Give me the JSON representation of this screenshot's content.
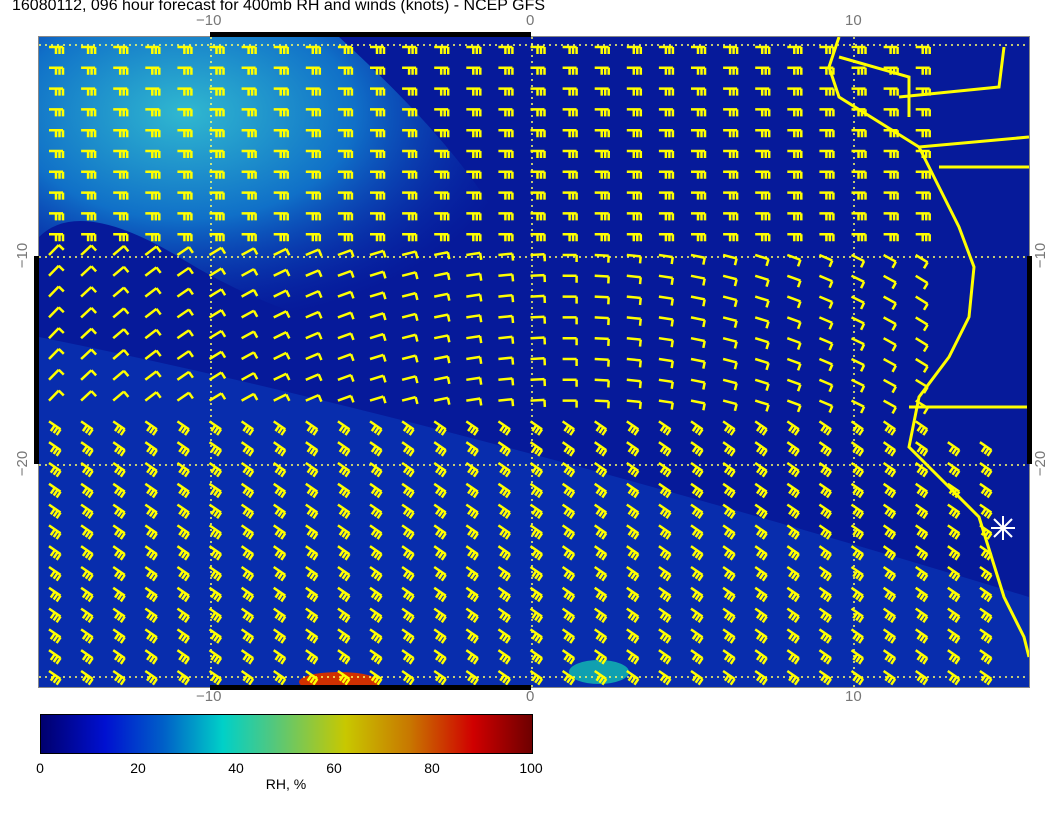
{
  "title": "16080112, 096 hour forecast for 400mb RH and winds (knots) - NCEP GFS",
  "x_ticks": [
    "−10",
    "0",
    "10"
  ],
  "y_ticks": [
    "−10",
    "−20"
  ],
  "colorbar": {
    "label": "RH, %",
    "ticks": [
      "0",
      "20",
      "40",
      "60",
      "80",
      "100"
    ],
    "range": [
      0,
      100
    ]
  },
  "colors": {
    "field_low": "#00006e",
    "field_moist": "#30b0d0",
    "barbs": "#ffff00",
    "coastline": "#ffff00",
    "grid": "#ffff66",
    "marker": "#ffffff"
  },
  "layers": [
    "relative humidity shading",
    "wind barbs",
    "coastlines",
    "dotted graticule"
  ],
  "marker_icon": "asterisk-icon"
}
